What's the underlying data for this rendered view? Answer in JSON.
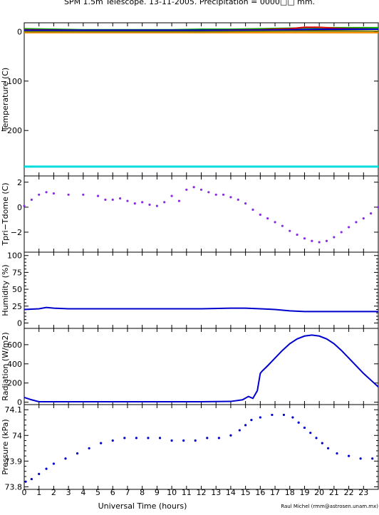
{
  "title": "SPM 1.5m Telescope. 13-11-2005. Precipitation = 0000□□ mm.",
  "xlabel": "Universal Time (hours)",
  "credit": "Raul Michel (rmm@astrosen.unam.mx)",
  "colors": {
    "frame": "#000000",
    "purple": "#8a2be2",
    "blue": "#0000cc",
    "cyan": "#00dddd",
    "orange": "#ff8c00",
    "green": "#00aa00",
    "red": "#dd0000",
    "darkred": "#8b0000",
    "olive": "#808000"
  },
  "chart_data": [
    {
      "type": "line",
      "name": "temperature",
      "ylabel": "Temperature (C)",
      "xlim": [
        0,
        24
      ],
      "ylim": [
        -292,
        18
      ],
      "yticks": [
        0,
        -100,
        -200
      ],
      "ytick_labels": [
        "0",
        "−100",
        "−200"
      ],
      "series": [
        {
          "color": "#00dddd",
          "x": [
            0,
            24
          ],
          "y": [
            -273,
            -273
          ]
        },
        {
          "color": "#ff8c00",
          "x": [
            0,
            24
          ],
          "y": [
            -2,
            -2
          ]
        },
        {
          "color": "#00aa00",
          "x": [
            0,
            2,
            4,
            6,
            8,
            10,
            12,
            14,
            16,
            18,
            20,
            22,
            24
          ],
          "y": [
            6,
            5,
            4,
            4,
            4,
            4,
            5,
            5,
            6,
            7,
            8,
            8,
            8
          ]
        },
        {
          "color": "#dd0000",
          "x": [
            0,
            4,
            8,
            12,
            16,
            18,
            19,
            20,
            21,
            22,
            24
          ],
          "y": [
            4,
            3,
            3,
            3,
            4,
            6,
            9,
            9,
            7,
            6,
            5
          ]
        },
        {
          "color": "#000000",
          "x": [
            0,
            4,
            8,
            12,
            16,
            20,
            24
          ],
          "y": [
            2,
            2,
            2,
            2,
            3,
            4,
            5
          ]
        },
        {
          "color": "#0000cc",
          "x": [
            0,
            4,
            8,
            12,
            16,
            20,
            24
          ],
          "y": [
            3,
            3,
            3,
            3,
            3,
            5,
            5
          ]
        },
        {
          "color": "#808000",
          "x": [
            0,
            6,
            12,
            18,
            24
          ],
          "y": [
            0,
            0,
            0,
            1,
            1
          ]
        }
      ]
    },
    {
      "type": "scatter",
      "name": "tpri-tdome",
      "ylabel": "Tpri−Tdome (C)",
      "xlim": [
        0,
        24
      ],
      "ylim": [
        -3.6,
        2.5
      ],
      "yticks": [
        2,
        0,
        -2
      ],
      "ytick_labels": [
        "2",
        "0",
        "−2"
      ],
      "color": "#8a2be2",
      "x": [
        0,
        0.5,
        1,
        1.5,
        2,
        3,
        4,
        5,
        5.5,
        6,
        6.5,
        7,
        7.5,
        8,
        8.5,
        9,
        9.5,
        10,
        10.5,
        11,
        11.5,
        12,
        12.5,
        13,
        13.5,
        14,
        14.5,
        15,
        15.5,
        16,
        16.5,
        17,
        17.5,
        18,
        18.5,
        19,
        19.5,
        20,
        20.5,
        21,
        21.5,
        22,
        22.5,
        23,
        23.5,
        24
      ],
      "y": [
        0.1,
        0.6,
        1.0,
        1.2,
        1.1,
        1.0,
        1.0,
        0.9,
        0.6,
        0.6,
        0.7,
        0.5,
        0.3,
        0.4,
        0.2,
        0.1,
        0.4,
        0.9,
        0.5,
        1.4,
        1.6,
        1.4,
        1.2,
        1.0,
        1.0,
        0.8,
        0.6,
        0.3,
        -0.2,
        -0.6,
        -0.9,
        -1.2,
        -1.5,
        -1.9,
        -2.2,
        -2.5,
        -2.7,
        -2.8,
        -2.7,
        -2.4,
        -2.0,
        -1.6,
        -1.2,
        -0.9,
        -0.5,
        0.0
      ]
    },
    {
      "type": "line",
      "name": "humidity",
      "ylabel": "Humidity (%)",
      "xlim": [
        0,
        24
      ],
      "ylim": [
        -8,
        105
      ],
      "yticks": [
        0,
        25,
        50,
        75,
        100
      ],
      "ytick_labels": [
        "0",
        "25",
        "50",
        "75",
        "100"
      ],
      "yminor": [
        5,
        10,
        15,
        20,
        30,
        35,
        40,
        45,
        55,
        60,
        65,
        70,
        80,
        85,
        90,
        95
      ],
      "color": "#0000cc",
      "x": [
        0,
        1,
        1.5,
        2,
        3,
        6,
        9,
        12,
        14,
        15,
        16,
        17,
        18,
        19,
        20,
        24
      ],
      "y": [
        20,
        21,
        23,
        22,
        21,
        21,
        21,
        21,
        22,
        22,
        21,
        20,
        18,
        17,
        17,
        17
      ]
    },
    {
      "type": "line",
      "name": "radiation",
      "ylabel": "Radiation (W/m2)",
      "xlim": [
        0,
        24
      ],
      "ylim": [
        -25,
        770
      ],
      "yticks": [
        0,
        200,
        400,
        600
      ],
      "ytick_labels": [
        "0",
        "200",
        "400",
        "600"
      ],
      "color": "#0000cc",
      "x": [
        0,
        0.5,
        1,
        2,
        4,
        6,
        8,
        10,
        12,
        14,
        14.8,
        15.2,
        15.5,
        15.8,
        16,
        16.1,
        16.5,
        17,
        17.5,
        18,
        18.5,
        19,
        19.5,
        20,
        20.5,
        21,
        21.5,
        22,
        22.5,
        23,
        23.5,
        24
      ],
      "y": [
        50,
        25,
        5,
        5,
        5,
        5,
        5,
        5,
        5,
        8,
        25,
        60,
        40,
        120,
        300,
        320,
        380,
        460,
        540,
        610,
        660,
        690,
        700,
        690,
        660,
        610,
        540,
        460,
        380,
        300,
        230,
        160
      ]
    },
    {
      "type": "scatter",
      "name": "pressure",
      "ylabel": "Pressure (kPa)",
      "xlim": [
        0,
        24
      ],
      "ylim": [
        73.79,
        74.12
      ],
      "yticks": [
        73.8,
        73.9,
        74.0,
        74.1
      ],
      "ytick_labels": [
        "73.8",
        "73.9",
        "74",
        "74.1"
      ],
      "yminor": [
        73.82,
        73.84,
        73.86,
        73.88,
        73.92,
        73.94,
        73.96,
        73.98,
        74.02,
        74.04,
        74.06,
        74.08
      ],
      "color": "#0000cc",
      "x": [
        0.1,
        0.5,
        1,
        1.5,
        2,
        2.8,
        3.6,
        4.4,
        5.2,
        6,
        6.8,
        7.6,
        8.4,
        9.2,
        10,
        10.8,
        11.6,
        12.4,
        13.2,
        14,
        14.6,
        15,
        15.4,
        16,
        16.8,
        17.6,
        18.2,
        18.6,
        19,
        19.4,
        19.8,
        20.2,
        20.6,
        21.2,
        22,
        22.8,
        23.6
      ],
      "y": [
        73.82,
        73.83,
        73.85,
        73.87,
        73.89,
        73.91,
        73.93,
        73.95,
        73.97,
        73.98,
        73.99,
        73.99,
        73.99,
        73.99,
        73.98,
        73.98,
        73.98,
        73.99,
        73.99,
        74.0,
        74.02,
        74.04,
        74.06,
        74.07,
        74.08,
        74.08,
        74.07,
        74.05,
        74.03,
        74.01,
        73.99,
        73.97,
        73.95,
        73.93,
        73.92,
        73.91,
        73.91
      ]
    }
  ],
  "xaxis": {
    "xlim": [
      0,
      24
    ],
    "ticks": [
      0,
      1,
      2,
      3,
      4,
      5,
      6,
      7,
      8,
      9,
      10,
      11,
      12,
      13,
      14,
      15,
      16,
      17,
      18,
      19,
      20,
      21,
      22,
      23
    ],
    "tick_labels": [
      "0",
      "1",
      "2",
      "3",
      "4",
      "5",
      "6",
      "7",
      "8",
      "9",
      "10",
      "11",
      "12",
      "13",
      "14",
      "15",
      "16",
      "17",
      "18",
      "19",
      "20",
      "21",
      "22",
      "23"
    ]
  }
}
